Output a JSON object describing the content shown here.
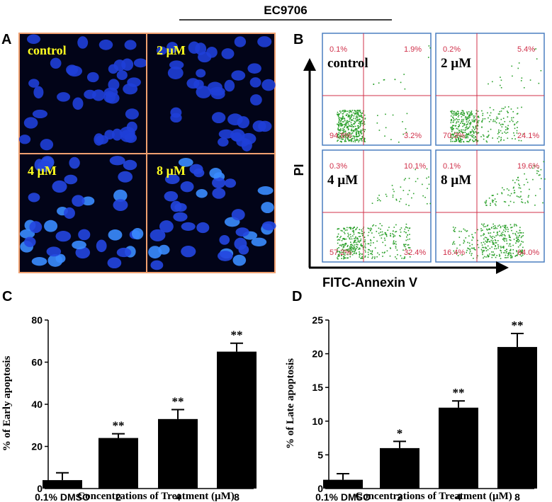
{
  "figure": {
    "title": "EC9706",
    "panel_a": {
      "label": "A",
      "images": [
        "control",
        "2 µM",
        "4 µM",
        "8 µM"
      ]
    },
    "panel_b": {
      "label": "B",
      "y_axis": "PI",
      "x_axis": "FITC-Annexin V",
      "plots": [
        {
          "label": "control",
          "quadrants": [
            "0.1%",
            "1.9%",
            "94.8%",
            "3.2%"
          ]
        },
        {
          "label": "2 µM",
          "quadrants": [
            "0.2%",
            "5.4%",
            "70.3%",
            "24.1%"
          ]
        },
        {
          "label": "4 µM",
          "quadrants": [
            "0.3%",
            "10.1%",
            "57.2%",
            "32.4%"
          ]
        },
        {
          "label": "8 µM",
          "quadrants": [
            "0.1%",
            "19.6%",
            "16.4%",
            "64.0%"
          ]
        }
      ]
    }
  },
  "chart_data": [
    {
      "type": "bar",
      "panel": "C",
      "categories": [
        "0.1% DMSO",
        "2",
        "4",
        "8"
      ],
      "values": [
        4,
        24,
        33,
        65
      ],
      "errors": [
        3.5,
        2,
        4.5,
        4
      ],
      "annotations": [
        null,
        "**",
        "**",
        "**"
      ],
      "color": "#000000",
      "ylim": [
        0,
        80
      ],
      "yticks": [
        0,
        20,
        40,
        60,
        80
      ],
      "ylabel": "% of Early apoptosis",
      "xlabel": "Concentrations of Treatment (µM)"
    },
    {
      "type": "bar",
      "panel": "D",
      "categories": [
        "0.1% DMSO",
        "2",
        "4",
        "8"
      ],
      "values": [
        1.3,
        6,
        12,
        21
      ],
      "errors": [
        0.9,
        1,
        1,
        2
      ],
      "annotations": [
        null,
        "*",
        "**",
        "**"
      ],
      "color": "#000000",
      "ylim": [
        0,
        25
      ],
      "yticks": [
        0,
        5,
        10,
        15,
        20,
        25
      ],
      "ylabel": "% of Late apoptosis",
      "xlabel": "Concentrations of Treatment (µM)"
    }
  ]
}
